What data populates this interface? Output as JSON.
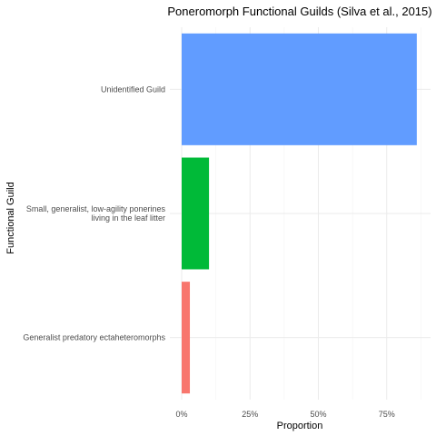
{
  "chart_data": {
    "type": "bar",
    "orientation": "horizontal",
    "title": "Poneromorph Functional Guilds (Silva et al., 2015)",
    "xlabel": "Proportion",
    "ylabel": "Functional Guild",
    "xlim": [
      0,
      0.9
    ],
    "x_ticks": [
      0,
      0.25,
      0.5,
      0.75
    ],
    "x_tick_labels": [
      "0%",
      "25%",
      "50%",
      "75%"
    ],
    "grid": true,
    "legend": "none",
    "categories": [
      [
        "Generalist predatory ectaheteromorphs"
      ],
      [
        "Small, generalist, low-agility ponerines",
        "living in the leaf litter"
      ],
      [
        "Unidentified Guild"
      ]
    ],
    "values": [
      0.03,
      0.1,
      0.86
    ],
    "colors": [
      "#F8766D",
      "#00BA38",
      "#619CFF"
    ]
  }
}
